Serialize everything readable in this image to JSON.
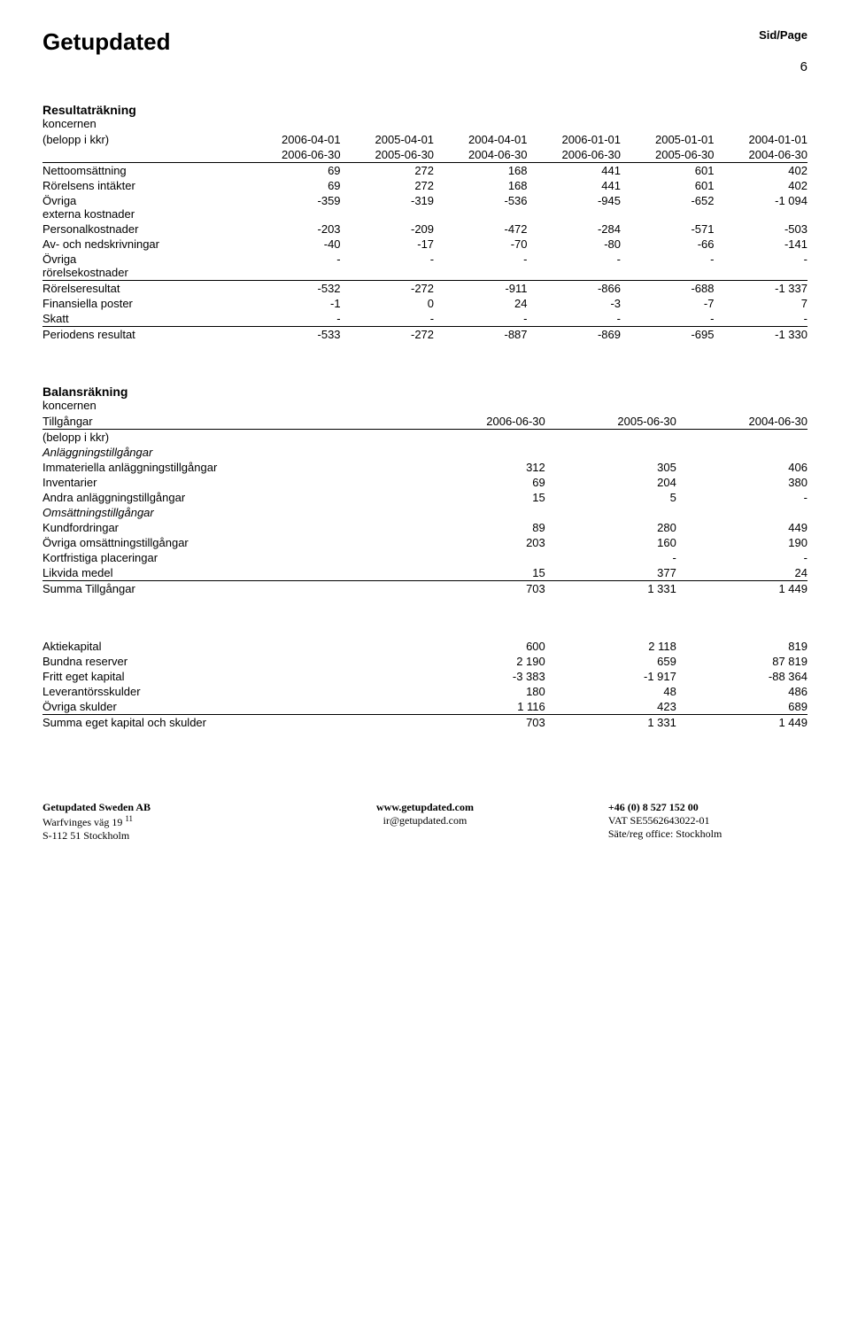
{
  "header": {
    "title": "Getupdated",
    "page_label": "Sid/Page",
    "page_num": "6"
  },
  "income": {
    "title": "Resultaträkning",
    "subhead": "koncernen",
    "colhead_label": "(belopp i kkr)",
    "cols_top": [
      "2006-04-01",
      "2005-04-01",
      "2004-04-01",
      "2006-01-01",
      "2005-01-01",
      "2004-01-01"
    ],
    "cols_bot": [
      "2006-06-30",
      "2005-06-30",
      "2004-06-30",
      "2006-06-30",
      "2005-06-30",
      "2004-06-30"
    ],
    "rows": [
      {
        "label": "Nettoomsättning",
        "v": [
          "69",
          "272",
          "168",
          "441",
          "601",
          "402"
        ]
      },
      {
        "label": "Rörelsens intäkter",
        "v": [
          "69",
          "272",
          "168",
          "441",
          "601",
          "402"
        ]
      },
      {
        "label": "Övriga externa kostnader",
        "v": [
          "-359",
          "-319",
          "-536",
          "-945",
          "-652",
          "-1 094"
        ],
        "wrap": true
      },
      {
        "label": "Personalkostnader",
        "v": [
          "-203",
          "-209",
          "-472",
          "-284",
          "-571",
          "-503"
        ]
      },
      {
        "label": "Av- och nedskrivningar",
        "v": [
          "-40",
          "-17",
          "-70",
          "-80",
          "-66",
          "-141"
        ]
      },
      {
        "label": "Övriga rörelsekostnader",
        "v": [
          "-",
          "-",
          "-",
          "-",
          "-",
          "-"
        ],
        "wrap": true,
        "underline": true
      },
      {
        "label": "Rörelseresultat",
        "v": [
          "-532",
          "-272",
          "-911",
          "-866",
          "-688",
          "-1 337"
        ]
      },
      {
        "label": "Finansiella poster",
        "v": [
          "-1",
          "0",
          "24",
          "-3",
          "-7",
          "7"
        ]
      },
      {
        "label": "Skatt",
        "v": [
          "-",
          "-",
          "-",
          "-",
          "-",
          "-"
        ],
        "underline": true
      },
      {
        "label": "Periodens resultat",
        "v": [
          "-533",
          "-272",
          "-887",
          "-869",
          "-695",
          "-1 330"
        ]
      }
    ]
  },
  "balance": {
    "title": "Balansräkning",
    "subhead": "koncernen",
    "assets_label": "Tillgångar",
    "belopp": "(belopp i kkr)",
    "cols": [
      "2006-06-30",
      "2005-06-30",
      "2004-06-30"
    ],
    "groups": [
      {
        "italic": "Anläggningstillgångar",
        "rows": [
          {
            "label": "Immateriella anläggningstillgångar",
            "v": [
              "312",
              "305",
              "406"
            ]
          },
          {
            "label": "Inventarier",
            "v": [
              "69",
              "204",
              "380"
            ]
          },
          {
            "label": "Andra anläggningstillgångar",
            "v": [
              "15",
              "5",
              "-"
            ]
          }
        ]
      },
      {
        "italic": "Omsättningstillgångar",
        "rows": [
          {
            "label": "Kundfordringar",
            "v": [
              "89",
              "280",
              "449"
            ]
          },
          {
            "label": "Övriga omsättningstillgångar",
            "v": [
              "203",
              "160",
              "190"
            ]
          },
          {
            "label": "Kortfristiga placeringar",
            "v": [
              "",
              "-",
              "-"
            ]
          },
          {
            "label": "Likvida medel",
            "v": [
              "15",
              "377",
              "24"
            ],
            "underline": true
          },
          {
            "label": "Summa Tillgångar",
            "v": [
              "703",
              "1 331",
              "1 449"
            ]
          }
        ]
      }
    ],
    "equity_rows": [
      {
        "label": "Aktiekapital",
        "v": [
          "600",
          "2 118",
          "819"
        ]
      },
      {
        "label": "Bundna reserver",
        "v": [
          "2 190",
          "659",
          "87 819"
        ]
      },
      {
        "label": "Fritt eget kapital",
        "v": [
          "-3 383",
          "-1 917",
          "-88 364"
        ]
      },
      {
        "label": "Leverantörsskulder",
        "v": [
          "180",
          "48",
          "486"
        ]
      },
      {
        "label": "Övriga skulder",
        "v": [
          "1 116",
          "423",
          "689"
        ],
        "underline": true
      },
      {
        "label": "Summa eget kapital och skulder",
        "v": [
          "703",
          "1 331",
          "1 449"
        ]
      }
    ]
  },
  "footer": {
    "l1": "Getupdated Sweden AB",
    "l2": "Warfvinges väg 19",
    "l2sup": "11",
    "l3": "S-112 51 Stockholm",
    "m1": "www.getupdated.com",
    "m2": "ir@getupdated.com",
    "r1": "+46 (0) 8 527 152 00",
    "r2": "VAT SE5562643022-01",
    "r3": "Säte/reg office: Stockholm"
  }
}
